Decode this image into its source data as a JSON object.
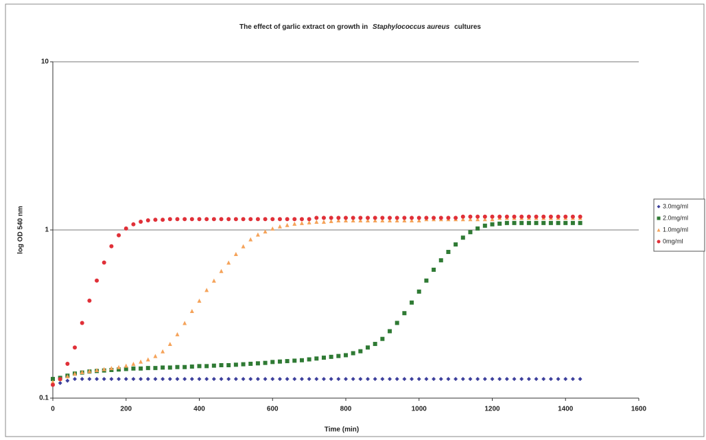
{
  "chart_data": {
    "type": "scatter",
    "title_parts": [
      "The effect of garlic extract on growth in",
      "Staphylococcus aureus",
      "cultures"
    ],
    "xlabel": "Time (min)",
    "ylabel": "log OD 540 nm",
    "log_y": true,
    "grid": true,
    "legend": "right",
    "xlim": [
      0,
      1600
    ],
    "xticks": [
      0,
      200,
      400,
      600,
      800,
      1000,
      1200,
      1400,
      1600
    ],
    "ylim": [
      0.1,
      10
    ],
    "yticks": [
      0.1,
      1,
      10
    ],
    "x": [
      0,
      20,
      40,
      60,
      80,
      100,
      120,
      140,
      160,
      180,
      200,
      220,
      240,
      260,
      280,
      300,
      320,
      340,
      360,
      380,
      400,
      420,
      440,
      460,
      480,
      500,
      520,
      540,
      560,
      580,
      600,
      620,
      640,
      660,
      680,
      700,
      720,
      740,
      760,
      780,
      800,
      820,
      840,
      860,
      880,
      900,
      920,
      940,
      960,
      980,
      1000,
      1020,
      1040,
      1060,
      1080,
      1100,
      1120,
      1140,
      1160,
      1180,
      1200,
      1220,
      1240,
      1260,
      1280,
      1300,
      1320,
      1340,
      1360,
      1380,
      1400,
      1420,
      1440
    ],
    "series": [
      {
        "name": "3.0mg/ml",
        "color": "#3c3f9c",
        "marker": "diamond",
        "values": [
          0.12,
          0.123,
          0.127,
          0.13,
          0.13,
          0.13,
          0.13,
          0.13,
          0.13,
          0.13,
          0.13,
          0.13,
          0.13,
          0.13,
          0.13,
          0.13,
          0.13,
          0.13,
          0.13,
          0.13,
          0.13,
          0.13,
          0.13,
          0.13,
          0.13,
          0.13,
          0.13,
          0.13,
          0.13,
          0.13,
          0.13,
          0.13,
          0.13,
          0.13,
          0.13,
          0.13,
          0.13,
          0.13,
          0.13,
          0.13,
          0.13,
          0.13,
          0.13,
          0.13,
          0.13,
          0.13,
          0.13,
          0.13,
          0.13,
          0.13,
          0.13,
          0.13,
          0.13,
          0.13,
          0.13,
          0.13,
          0.13,
          0.13,
          0.13,
          0.13,
          0.13,
          0.13,
          0.13,
          0.13,
          0.13,
          0.13,
          0.13,
          0.13,
          0.13,
          0.13,
          0.13,
          0.13,
          0.13
        ]
      },
      {
        "name": "2.0mg/ml",
        "color": "#2f7a34",
        "marker": "square",
        "values": [
          0.13,
          0.132,
          0.136,
          0.14,
          0.142,
          0.144,
          0.145,
          0.146,
          0.147,
          0.148,
          0.149,
          0.15,
          0.15,
          0.151,
          0.151,
          0.152,
          0.152,
          0.153,
          0.153,
          0.154,
          0.155,
          0.155,
          0.156,
          0.157,
          0.157,
          0.158,
          0.159,
          0.16,
          0.161,
          0.162,
          0.164,
          0.165,
          0.166,
          0.167,
          0.168,
          0.17,
          0.172,
          0.174,
          0.176,
          0.178,
          0.18,
          0.185,
          0.19,
          0.2,
          0.21,
          0.225,
          0.25,
          0.28,
          0.32,
          0.37,
          0.43,
          0.5,
          0.58,
          0.66,
          0.74,
          0.82,
          0.9,
          0.97,
          1.02,
          1.06,
          1.08,
          1.09,
          1.1,
          1.1,
          1.1,
          1.1,
          1.1,
          1.1,
          1.1,
          1.1,
          1.1,
          1.1,
          1.1
        ]
      },
      {
        "name": "1.0mg/ml",
        "color": "#f5a35a",
        "marker": "triangle",
        "values": [
          0.125,
          0.13,
          0.135,
          0.14,
          0.143,
          0.145,
          0.147,
          0.149,
          0.151,
          0.153,
          0.156,
          0.16,
          0.165,
          0.17,
          0.178,
          0.19,
          0.21,
          0.24,
          0.28,
          0.33,
          0.38,
          0.44,
          0.5,
          0.57,
          0.64,
          0.72,
          0.8,
          0.88,
          0.94,
          0.98,
          1.02,
          1.05,
          1.07,
          1.09,
          1.1,
          1.11,
          1.12,
          1.12,
          1.13,
          1.14,
          1.14,
          1.14,
          1.14,
          1.14,
          1.14,
          1.14,
          1.14,
          1.14,
          1.14,
          1.14,
          1.14,
          1.16,
          1.16,
          1.16,
          1.16,
          1.16,
          1.16,
          1.16,
          1.16,
          1.16,
          1.16,
          1.18,
          1.18,
          1.18,
          1.18,
          1.18,
          1.18,
          1.18,
          1.18,
          1.18,
          1.18,
          1.18,
          1.18
        ]
      },
      {
        "name": "0mg/ml",
        "color": "#e03038",
        "marker": "circle",
        "values": [
          0.12,
          0.13,
          0.16,
          0.2,
          0.28,
          0.38,
          0.5,
          0.64,
          0.8,
          0.93,
          1.02,
          1.08,
          1.12,
          1.14,
          1.15,
          1.15,
          1.16,
          1.16,
          1.16,
          1.16,
          1.16,
          1.16,
          1.16,
          1.16,
          1.16,
          1.16,
          1.16,
          1.16,
          1.16,
          1.16,
          1.16,
          1.16,
          1.16,
          1.16,
          1.16,
          1.16,
          1.18,
          1.18,
          1.18,
          1.18,
          1.18,
          1.18,
          1.18,
          1.18,
          1.18,
          1.18,
          1.18,
          1.18,
          1.18,
          1.18,
          1.18,
          1.18,
          1.18,
          1.18,
          1.18,
          1.18,
          1.2,
          1.2,
          1.2,
          1.2,
          1.2,
          1.2,
          1.2,
          1.2,
          1.2,
          1.2,
          1.2,
          1.2,
          1.2,
          1.2,
          1.2,
          1.2,
          1.2
        ]
      }
    ]
  }
}
